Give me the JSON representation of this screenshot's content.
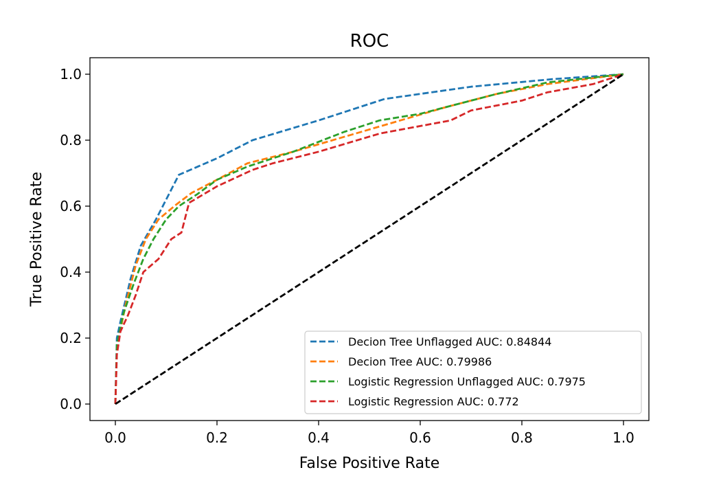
{
  "chart_data": {
    "type": "line",
    "title": "ROC",
    "xlabel": "False Positive Rate",
    "ylabel": "True Positive Rate",
    "xlim": [
      -0.05,
      1.05
    ],
    "ylim": [
      -0.05,
      1.05
    ],
    "xticks": [
      "0.0",
      "0.2",
      "0.4",
      "0.6",
      "0.8",
      "1.0"
    ],
    "yticks": [
      "0.0",
      "0.2",
      "0.4",
      "0.6",
      "0.8",
      "1.0"
    ],
    "grid": false,
    "legend_position": "lower-right",
    "line_style": "dashed",
    "series": [
      {
        "name": "Decion Tree Unflagged AUC: 0.84844",
        "color": "#1f77b4",
        "points": [
          [
            0,
            0
          ],
          [
            0.003,
            0.2
          ],
          [
            0.01,
            0.25
          ],
          [
            0.03,
            0.38
          ],
          [
            0.05,
            0.48
          ],
          [
            0.08,
            0.56
          ],
          [
            0.125,
            0.695
          ],
          [
            0.2,
            0.745
          ],
          [
            0.27,
            0.8
          ],
          [
            0.4,
            0.86
          ],
          [
            0.53,
            0.925
          ],
          [
            0.7,
            0.962
          ],
          [
            0.86,
            0.985
          ],
          [
            1,
            1
          ]
        ]
      },
      {
        "name": "Decion Tree AUC: 0.79986",
        "color": "#ff7f0e",
        "points": [
          [
            0,
            0
          ],
          [
            0.003,
            0.17
          ],
          [
            0.02,
            0.3
          ],
          [
            0.04,
            0.42
          ],
          [
            0.06,
            0.5
          ],
          [
            0.085,
            0.56
          ],
          [
            0.12,
            0.605
          ],
          [
            0.15,
            0.64
          ],
          [
            0.2,
            0.68
          ],
          [
            0.26,
            0.73
          ],
          [
            0.35,
            0.765
          ],
          [
            0.45,
            0.81
          ],
          [
            0.55,
            0.855
          ],
          [
            0.65,
            0.9
          ],
          [
            0.75,
            0.94
          ],
          [
            0.85,
            0.97
          ],
          [
            1,
            1
          ]
        ]
      },
      {
        "name": "Logistic Regression Unflagged AUC: 0.7975",
        "color": "#2ca02c",
        "points": [
          [
            0,
            0
          ],
          [
            0.003,
            0.18
          ],
          [
            0.015,
            0.27
          ],
          [
            0.035,
            0.36
          ],
          [
            0.055,
            0.44
          ],
          [
            0.075,
            0.5
          ],
          [
            0.1,
            0.56
          ],
          [
            0.125,
            0.6
          ],
          [
            0.16,
            0.635
          ],
          [
            0.2,
            0.68
          ],
          [
            0.26,
            0.72
          ],
          [
            0.35,
            0.765
          ],
          [
            0.45,
            0.825
          ],
          [
            0.52,
            0.86
          ],
          [
            0.6,
            0.88
          ],
          [
            0.65,
            0.9
          ],
          [
            0.75,
            0.94
          ],
          [
            0.85,
            0.975
          ],
          [
            1,
            1
          ]
        ]
      },
      {
        "name": "Logistic Regression AUC: 0.772",
        "color": "#d62728",
        "points": [
          [
            0,
            0
          ],
          [
            0.003,
            0.15
          ],
          [
            0.01,
            0.22
          ],
          [
            0.025,
            0.27
          ],
          [
            0.04,
            0.33
          ],
          [
            0.055,
            0.4
          ],
          [
            0.085,
            0.44
          ],
          [
            0.11,
            0.5
          ],
          [
            0.13,
            0.52
          ],
          [
            0.145,
            0.61
          ],
          [
            0.2,
            0.66
          ],
          [
            0.27,
            0.71
          ],
          [
            0.31,
            0.73
          ],
          [
            0.4,
            0.765
          ],
          [
            0.52,
            0.82
          ],
          [
            0.66,
            0.86
          ],
          [
            0.7,
            0.89
          ],
          [
            0.8,
            0.92
          ],
          [
            0.85,
            0.945
          ],
          [
            0.94,
            0.97
          ],
          [
            1,
            1
          ]
        ]
      },
      {
        "name": "",
        "color": "#000000",
        "points": [
          [
            0,
            0
          ],
          [
            1,
            1
          ]
        ]
      }
    ]
  }
}
